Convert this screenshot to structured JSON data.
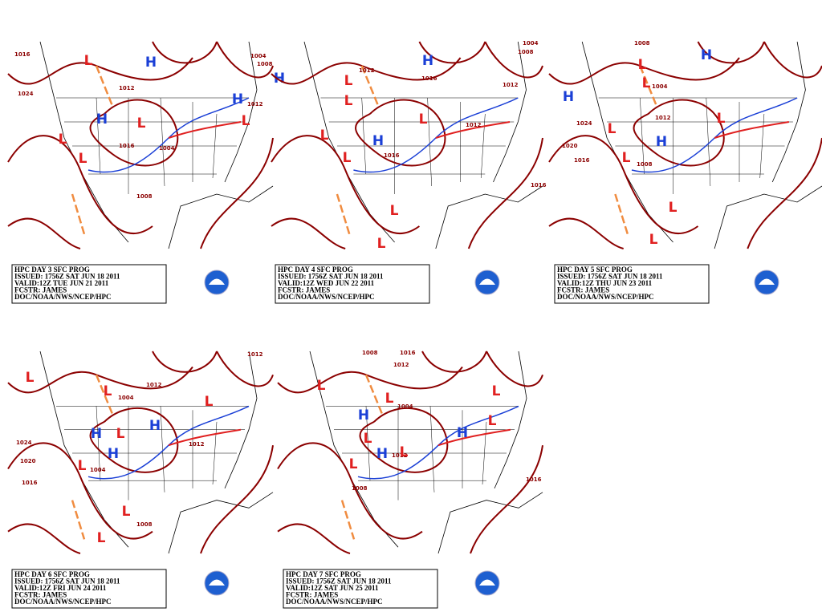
{
  "panels": [
    {
      "caption": [
        "HPC DAY 3 SFC PROG",
        "ISSUED: 1756Z SAT JUN 18 2011",
        "VALID:12Z TUE JUN 21 2011",
        "FCSTR: JAMES",
        "DOC/NOAA/NWS/NCEP/HPC"
      ],
      "highs": [
        "H",
        "H",
        "H",
        "H"
      ],
      "lows": [
        "L",
        "L",
        "L",
        "L",
        "L"
      ],
      "isobars": [
        "1016",
        "1012",
        "1008",
        "1004",
        "1012",
        "1008",
        "1016",
        "1024",
        "1004"
      ]
    },
    {
      "caption": [
        "HPC DAY 4 SFC PROG",
        "ISSUED: 1756Z SAT JUN 18 2011",
        "VALID:12Z WED JUN 22 2011",
        "FCSTR: JAMES",
        "DOC/NOAA/NWS/NCEP/HPC"
      ],
      "highs": [
        "H",
        "H"
      ],
      "lows": [
        "L",
        "L",
        "L",
        "L",
        "L",
        "L",
        "L"
      ],
      "isobars": [
        "1012",
        "1016",
        "1012",
        "1004",
        "1008",
        "1016",
        "1016",
        "1012"
      ]
    },
    {
      "caption": [
        "HPC DAY 5 SFC PROG",
        "ISSUED: 1756Z SAT JUN 18 2011",
        "VALID:12Z THU JUN 23 2011",
        "FCSTR: JAMES",
        "DOC/NOAA/NWS/NCEP/HPC"
      ],
      "highs": [
        "H",
        "H",
        "H"
      ],
      "lows": [
        "L",
        "L",
        "L",
        "L",
        "L",
        "L",
        "L"
      ],
      "isobars": [
        "1008",
        "1004",
        "1024",
        "1020",
        "1016",
        "1012",
        "1008"
      ]
    },
    {
      "caption": [
        "HPC DAY 6 SFC PROG",
        "ISSUED: 1756Z SAT JUN 18 2011",
        "VALID:12Z FRI JUN 24 2011",
        "FCSTR: JAMES",
        "DOC/NOAA/NWS/NCEP/HPC"
      ],
      "highs": [
        "H",
        "H",
        "H"
      ],
      "lows": [
        "L",
        "L",
        "L",
        "L",
        "L",
        "L",
        "L"
      ],
      "isobars": [
        "1012",
        "1012",
        "1004",
        "1024",
        "1020",
        "1016",
        "1012",
        "1008",
        "1004"
      ]
    },
    {
      "caption": [
        "HPC DAY 7 SFC PROG",
        "ISSUED: 1756Z SAT JUN 18 2011",
        "VALID:12Z SAT JUN 25 2011",
        "FCSTR: JAMES",
        "DOC/NOAA/NWS/NCEP/HPC"
      ],
      "highs": [
        "H",
        "H",
        "H"
      ],
      "lows": [
        "L",
        "L",
        "L",
        "L",
        "L",
        "L",
        "L"
      ],
      "isobars": [
        "1008",
        "1016",
        "1012",
        "1004",
        "1012",
        "1008",
        "1016"
      ]
    }
  ]
}
